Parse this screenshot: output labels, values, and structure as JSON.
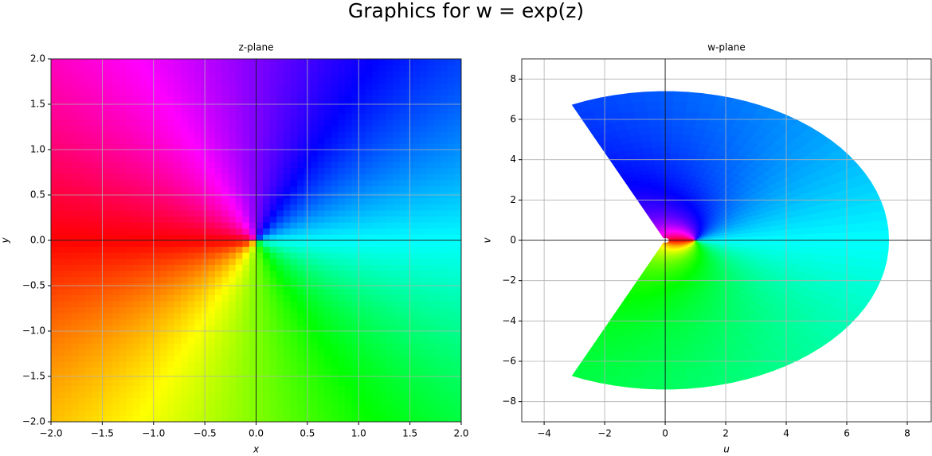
{
  "title": "Graphics for w = exp(z)",
  "chart_data": [
    {
      "type": "domain-coloring",
      "title": "z-plane",
      "x_label": "x",
      "y_label": "y",
      "xlim": [
        -2,
        2
      ],
      "ylim": [
        -2,
        2
      ],
      "xticks": [
        {
          "value": -2,
          "label": "−2.0"
        },
        {
          "value": -1.5,
          "label": "−1.5"
        },
        {
          "value": -1,
          "label": "−1.0"
        },
        {
          "value": -0.5,
          "label": "−0.5"
        },
        {
          "value": 0,
          "label": "0.0"
        },
        {
          "value": 0.5,
          "label": "0.5"
        },
        {
          "value": 1,
          "label": "1.0"
        },
        {
          "value": 1.5,
          "label": "1.5"
        },
        {
          "value": 2,
          "label": "2.0"
        }
      ],
      "yticks": [
        {
          "value": -2,
          "label": "−2.0"
        },
        {
          "value": -1.5,
          "label": "−1.5"
        },
        {
          "value": -1,
          "label": "−1.0"
        },
        {
          "value": -0.5,
          "label": "−0.5"
        },
        {
          "value": 0,
          "label": "0.0"
        },
        {
          "value": 0.5,
          "label": "0.5"
        },
        {
          "value": 1,
          "label": "1.0"
        },
        {
          "value": 1.5,
          "label": "1.5"
        },
        {
          "value": 2,
          "label": "2.0"
        }
      ],
      "grid": true
    },
    {
      "type": "domain-coloring-image",
      "title": "w-plane",
      "x_label": "u",
      "y_label": "v",
      "xlim": [
        -4.74,
        8.79
      ],
      "ylim": [
        -9,
        9
      ],
      "xticks": [
        {
          "value": -4,
          "label": "−4"
        },
        {
          "value": -2,
          "label": "−2"
        },
        0,
        2,
        4,
        6,
        8
      ],
      "yticks": [
        {
          "value": -8,
          "label": "−8"
        },
        {
          "value": -6,
          "label": "−6"
        },
        {
          "value": -4,
          "label": "−4"
        },
        {
          "value": -2,
          "label": "−2"
        },
        0,
        2,
        4,
        6,
        8
      ],
      "grid": true
    }
  ]
}
